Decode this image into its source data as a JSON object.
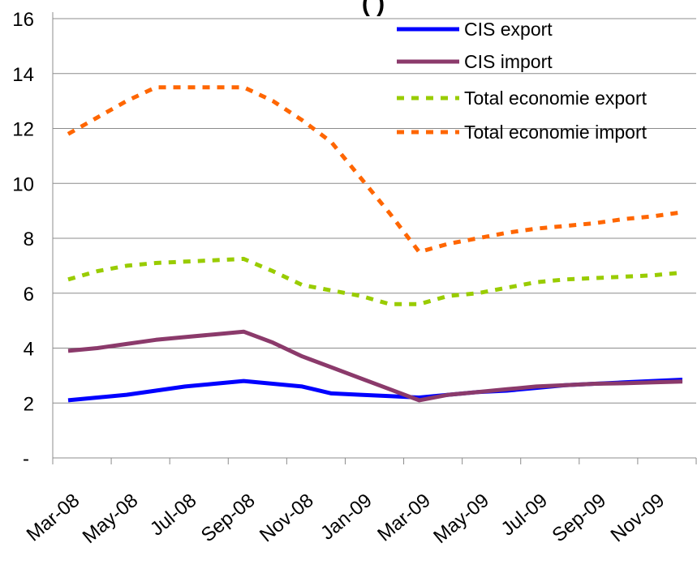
{
  "chart_data": {
    "type": "line",
    "title": "(             )",
    "xlabel": "",
    "ylabel": "",
    "categories": [
      "Mar-08",
      "May-08",
      "Jul-08",
      "Sep-08",
      "Nov-08",
      "Jan-09",
      "Mar-09",
      "May-09",
      "Jul-09",
      "Sep-09",
      "Nov-09"
    ],
    "x": [
      0,
      1,
      2,
      3,
      4,
      5,
      6,
      7,
      8,
      9,
      10,
      11,
      12,
      13,
      14,
      15,
      16,
      17,
      18,
      19,
      20,
      21
    ],
    "ylim": [
      0,
      16
    ],
    "yticks": [
      {
        "value": 0,
        "label": "-"
      },
      {
        "value": 2,
        "label": "2"
      },
      {
        "value": 4,
        "label": "4"
      },
      {
        "value": 6,
        "label": "6"
      },
      {
        "value": 8,
        "label": "8"
      },
      {
        "value": 10,
        "label": "10"
      },
      {
        "value": 12,
        "label": "12"
      },
      {
        "value": 14,
        "label": "14"
      },
      {
        "value": 16,
        "label": "16"
      }
    ],
    "grid": "horizontal",
    "legend_position": "top-right",
    "series": [
      {
        "name": "CIS export",
        "color": "#0000ff",
        "style": "solid",
        "values": [
          2.1,
          2.2,
          2.3,
          2.45,
          2.6,
          2.7,
          2.8,
          2.7,
          2.6,
          2.35,
          2.3,
          2.25,
          2.2,
          2.3,
          2.4,
          2.45,
          2.55,
          2.65,
          2.7,
          2.75,
          2.8,
          2.85
        ]
      },
      {
        "name": "CIS import",
        "color": "#8b3a6b",
        "style": "solid",
        "values": [
          3.9,
          4.0,
          4.15,
          4.3,
          4.4,
          4.5,
          4.6,
          4.2,
          3.7,
          3.3,
          2.9,
          2.5,
          2.1,
          2.3,
          2.4,
          2.5,
          2.6,
          2.65,
          2.7,
          2.72,
          2.75,
          2.78
        ]
      },
      {
        "name": "Total economie export",
        "color": "#99cc00",
        "style": "dotted",
        "values": [
          6.5,
          6.8,
          7.0,
          7.1,
          7.15,
          7.2,
          7.25,
          6.8,
          6.3,
          6.1,
          5.9,
          5.6,
          5.6,
          5.9,
          6.0,
          6.2,
          6.4,
          6.5,
          6.55,
          6.6,
          6.65,
          6.75
        ]
      },
      {
        "name": "Total economie import",
        "color": "#ff6600",
        "style": "dotted",
        "values": [
          11.8,
          12.4,
          13.0,
          13.5,
          13.5,
          13.5,
          13.5,
          13.0,
          12.3,
          11.5,
          10.2,
          8.9,
          7.5,
          7.8,
          8.0,
          8.2,
          8.35,
          8.45,
          8.55,
          8.7,
          8.8,
          8.95
        ]
      }
    ]
  }
}
